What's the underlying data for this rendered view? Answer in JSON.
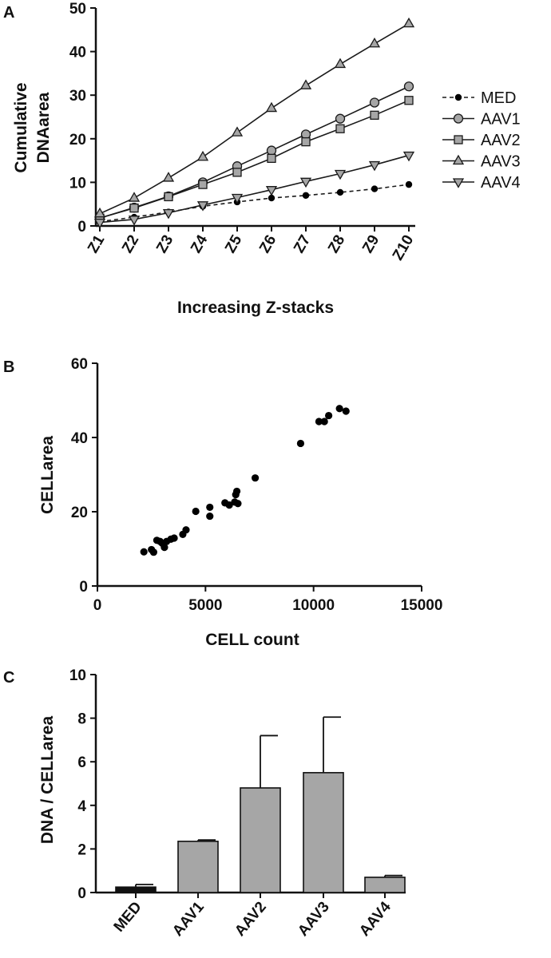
{
  "chart_data": [
    {
      "panel": "A",
      "type": "line",
      "title": "",
      "xlabel": "Increasing Z-stacks",
      "ylabel": "Cumulative DNAarea",
      "ylabel_lines": [
        "Cumulative",
        "DNAarea"
      ],
      "categories": [
        "Z1",
        "Z2",
        "Z3",
        "Z4",
        "Z5",
        "Z6",
        "Z7",
        "Z8",
        "Z9",
        "Z10"
      ],
      "ylim": [
        0,
        50
      ],
      "yticks": [
        0,
        10,
        20,
        30,
        40,
        50
      ],
      "legend_position": "right",
      "series": [
        {
          "name": "MED",
          "marker": "dot",
          "dashed": true,
          "values": [
            1.0,
            2.0,
            3.2,
            4.5,
            5.5,
            6.4,
            7.0,
            7.7,
            8.5,
            9.5
          ]
        },
        {
          "name": "AAV1",
          "marker": "circle",
          "dashed": false,
          "values": [
            1.8,
            4.2,
            6.8,
            10.0,
            13.7,
            17.3,
            21.0,
            24.6,
            28.3,
            32.0
          ]
        },
        {
          "name": "AAV2",
          "marker": "square",
          "dashed": false,
          "values": [
            1.8,
            4.1,
            6.7,
            9.5,
            12.3,
            15.5,
            19.3,
            22.3,
            25.4,
            28.8
          ]
        },
        {
          "name": "AAV3",
          "marker": "triangle-up",
          "dashed": false,
          "values": [
            2.8,
            6.4,
            11.0,
            15.8,
            21.4,
            27.0,
            32.2,
            37.1,
            41.8,
            46.4
          ]
        },
        {
          "name": "AAV4",
          "marker": "triangle-down",
          "dashed": false,
          "values": [
            0.8,
            1.5,
            3.0,
            4.8,
            6.5,
            8.3,
            10.2,
            12.0,
            14.0,
            16.2
          ]
        }
      ]
    },
    {
      "panel": "B",
      "type": "scatter",
      "title": "",
      "xlabel": "CELL count",
      "ylabel": "CELLarea",
      "xlim": [
        0,
        15000
      ],
      "xticks": [
        0,
        5000,
        10000,
        15000
      ],
      "ylim": [
        0,
        60
      ],
      "yticks": [
        0,
        20,
        40,
        60
      ],
      "points": [
        [
          2150,
          9.2
        ],
        [
          2500,
          9.8
        ],
        [
          2600,
          9.1
        ],
        [
          2750,
          12.3
        ],
        [
          2900,
          12.0
        ],
        [
          3000,
          11.5
        ],
        [
          3100,
          10.4
        ],
        [
          3200,
          12.0
        ],
        [
          3400,
          12.6
        ],
        [
          3550,
          12.9
        ],
        [
          3950,
          13.9
        ],
        [
          4100,
          15.1
        ],
        [
          4550,
          20.1
        ],
        [
          5200,
          21.2
        ],
        [
          5200,
          18.8
        ],
        [
          5900,
          22.4
        ],
        [
          6100,
          21.8
        ],
        [
          6350,
          22.6
        ],
        [
          6400,
          24.6
        ],
        [
          6450,
          25.5
        ],
        [
          6500,
          22.2
        ],
        [
          7300,
          29.1
        ],
        [
          9400,
          38.4
        ],
        [
          10250,
          44.3
        ],
        [
          10500,
          44.3
        ],
        [
          10700,
          45.9
        ],
        [
          11200,
          47.8
        ],
        [
          11500,
          47.1
        ]
      ]
    },
    {
      "panel": "C",
      "type": "bar",
      "title": "",
      "xlabel": "",
      "ylabel": "DNA / CELLarea",
      "categories": [
        "MED",
        "AAV1",
        "AAV2",
        "AAV3",
        "AAV4"
      ],
      "values": [
        0.25,
        2.35,
        4.8,
        5.5,
        0.7
      ],
      "errors": [
        0.12,
        0.06,
        2.4,
        2.55,
        0.08
      ],
      "ylim": [
        0,
        10
      ],
      "yticks": [
        0,
        2,
        4,
        6,
        8,
        10
      ],
      "bar_color": "#a6a6a6",
      "med_bar_color": "#111111"
    }
  ],
  "colors": {
    "line": "#1a1a1a",
    "marker_fill": "#a6a6a6",
    "dot": "#000000"
  }
}
